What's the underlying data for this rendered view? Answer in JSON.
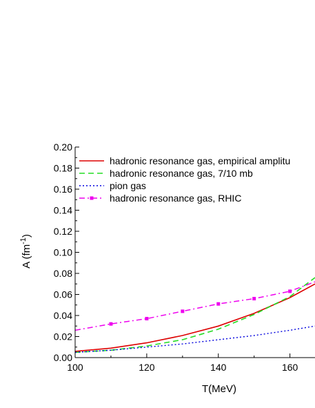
{
  "chart_data": {
    "type": "line",
    "xlabel": "T(MeV)",
    "ylabel_main": "A (fm",
    "ylabel_sup": "-1",
    "ylabel_close": ")",
    "xlim": [
      100,
      167
    ],
    "ylim": [
      0.0,
      0.2
    ],
    "xticks": [
      100,
      120,
      140,
      160
    ],
    "xtick_labels": [
      "100",
      "120",
      "140",
      "160"
    ],
    "yticks": [
      0.0,
      0.02,
      0.04,
      0.06,
      0.08,
      0.1,
      0.12,
      0.14,
      0.16,
      0.18,
      0.2
    ],
    "ytick_labels": [
      "0.00",
      "0.02",
      "0.04",
      "0.06",
      "0.08",
      "0.10",
      "0.12",
      "0.14",
      "0.16",
      "0.18",
      "0.20"
    ],
    "grid": false,
    "legend_position": "top-left",
    "series": [
      {
        "name": "hadronic resonance gas, empirical amplitu",
        "color": "#dd0000",
        "style": "solid",
        "x": [
          100,
          110,
          120,
          130,
          140,
          150,
          160,
          167
        ],
        "y": [
          0.006,
          0.009,
          0.014,
          0.021,
          0.03,
          0.042,
          0.057,
          0.07
        ]
      },
      {
        "name": "hadronic resonance gas, 7/10 mb",
        "color": "#22dd22",
        "style": "dashed",
        "x": [
          100,
          110,
          120,
          130,
          140,
          150,
          160,
          167
        ],
        "y": [
          0.005,
          0.007,
          0.011,
          0.017,
          0.027,
          0.041,
          0.058,
          0.076
        ]
      },
      {
        "name": "pion gas",
        "color": "#0000dd",
        "style": "dotted",
        "x": [
          100,
          110,
          120,
          130,
          140,
          150,
          160,
          167
        ],
        "y": [
          0.005,
          0.007,
          0.01,
          0.013,
          0.017,
          0.021,
          0.026,
          0.03
        ]
      },
      {
        "name": "hadronic resonance gas, RHIC",
        "color": "#ee00ee",
        "style": "dashdot",
        "markers": true,
        "x": [
          100,
          110,
          120,
          130,
          140,
          150,
          160,
          167
        ],
        "y": [
          0.026,
          0.032,
          0.037,
          0.044,
          0.051,
          0.056,
          0.063,
          0.072
        ],
        "marker_x": [
          110,
          120,
          130,
          140,
          150,
          160
        ]
      }
    ]
  }
}
